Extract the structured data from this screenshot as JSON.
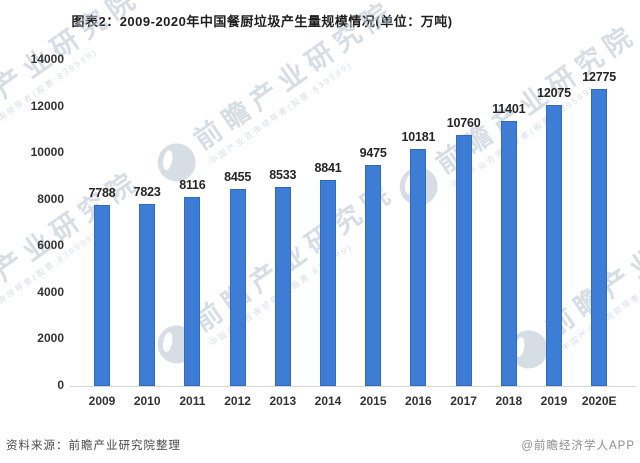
{
  "title": "图表2：2009-2020年中国餐厨垃圾产生量规模情况(单位：万吨)",
  "chart_data": {
    "type": "bar",
    "title": "图表2：2009-2020年中国餐厨垃圾产生量规模情况(单位：万吨)",
    "unit": "万吨",
    "categories": [
      "2009",
      "2010",
      "2011",
      "2012",
      "2013",
      "2014",
      "2015",
      "2016",
      "2017",
      "2018",
      "2019",
      "2020E"
    ],
    "values": [
      7788,
      7823,
      8116,
      8455,
      8533,
      8841,
      9475,
      10181,
      10760,
      11401,
      12075,
      12775
    ],
    "ylim": [
      0,
      14000
    ],
    "yticks": [
      14000,
      12000,
      10000,
      8000,
      6000,
      4000,
      2000,
      0
    ],
    "grid": false,
    "legend": "none",
    "bar_color": "#3E7DD5",
    "data_label_color": "#262626",
    "axis_line_color": "#d6d6d6"
  },
  "footer": {
    "source": "资料来源：前瞻产业研究院整理",
    "credit": "@前瞻经济学人APP"
  },
  "watermark": {
    "logo": "qianzhan-circle-logo",
    "main": "前瞻产业研究院",
    "sub": "中国产业咨询领导者(股票:839599)",
    "color": "#b6c2d1"
  }
}
